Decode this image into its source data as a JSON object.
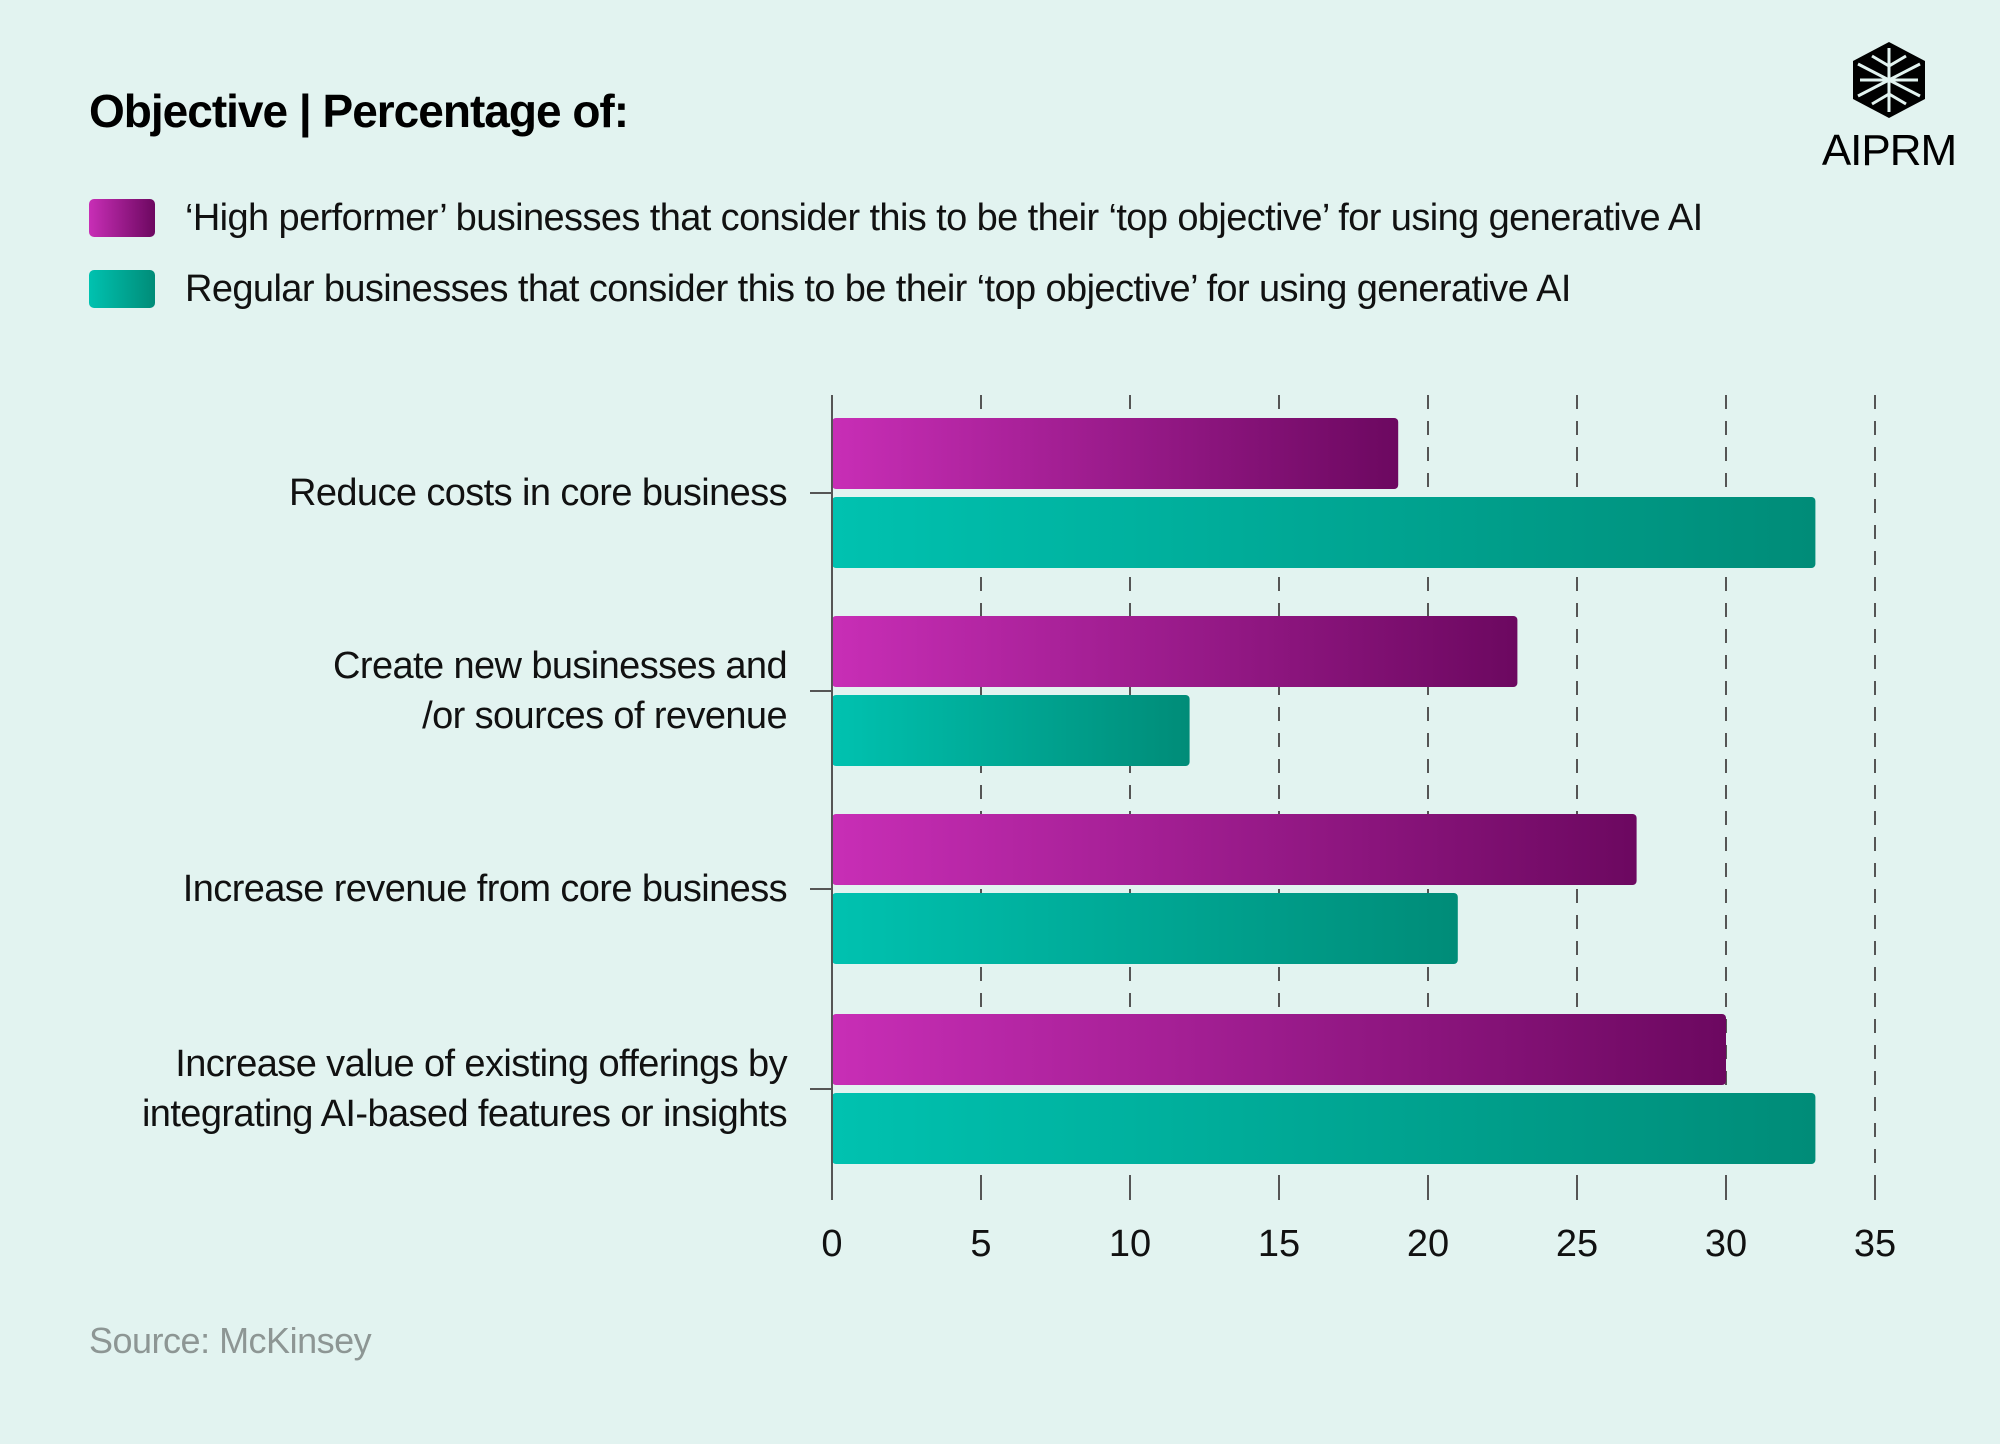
{
  "title": "Objective | Percentage of:",
  "logo": {
    "text": "AIPRM",
    "icon": "aiprm-logo-icon"
  },
  "legend": [
    {
      "label": "‘High performer’ businesses that consider this to be their ‘top objective’ for using generative AI",
      "color": "#a0188e"
    },
    {
      "label": "Regular businesses that consider this to be their ‘top objective’ for using generative AI",
      "color": "#00a896"
    }
  ],
  "categories_display": [
    [
      "Reduce costs in core business"
    ],
    [
      "Create new businesses and",
      "/or sources of revenue"
    ],
    [
      "Increase revenue from core business"
    ],
    [
      "Increase value of existing offerings by",
      "integrating AI-based features or insights"
    ]
  ],
  "source": "Source: McKinsey",
  "chart_data": {
    "type": "bar",
    "orientation": "horizontal",
    "categories": [
      "Reduce costs in core business",
      "Create new businesses and /or sources of revenue",
      "Increase revenue from core business",
      "Increase value of existing offerings by integrating AI-based features or insights"
    ],
    "series": [
      {
        "name": "‘High performer’ businesses that consider this to be their ‘top objective’ for using generative AI",
        "values": [
          19,
          23,
          27,
          30
        ],
        "color_start": "#c82eb6",
        "color_end": "#6c0860"
      },
      {
        "name": "Regular businesses that consider this to be their ‘top objective’ for using generative AI",
        "values": [
          33,
          12,
          21,
          33
        ],
        "color_start": "#00c2b0",
        "color_end": "#008c78"
      }
    ],
    "title": "Objective | Percentage of:",
    "xlim": [
      0,
      35
    ],
    "xticks": [
      0,
      5,
      10,
      15,
      20,
      25,
      30,
      35
    ],
    "grid": "vertical dashed",
    "legend_position": "top-left"
  }
}
